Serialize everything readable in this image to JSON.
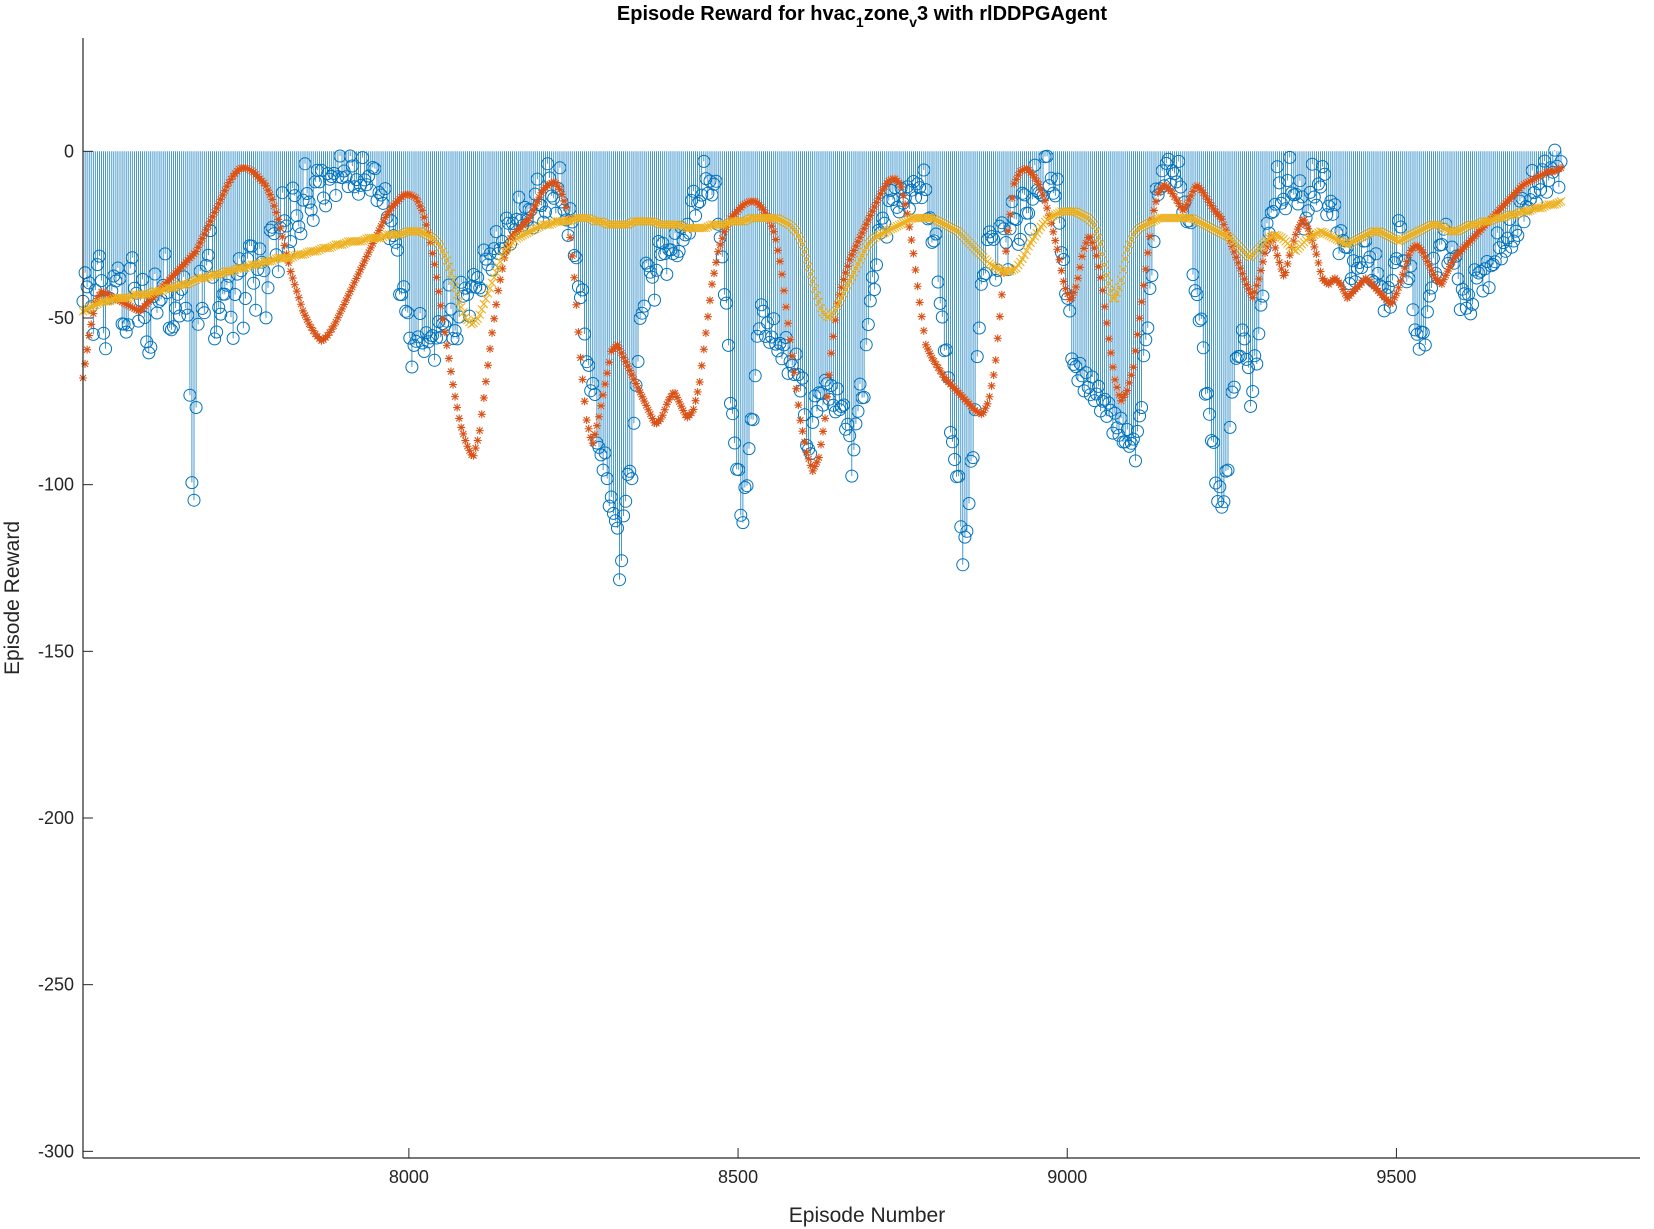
{
  "chart_data": {
    "type": "line",
    "title": {
      "segments": [
        {
          "text": "Episode Reward for hvac",
          "sub": false
        },
        {
          "text": "1",
          "sub": true
        },
        {
          "text": "zone",
          "sub": false
        },
        {
          "text": "v",
          "sub": true
        },
        {
          "text": "3 with rlDDPGAgent",
          "sub": false
        }
      ]
    },
    "xlabel": "Episode Number",
    "ylabel": "Episode Reward",
    "xlim": [
      7505,
      9870
    ],
    "ylim": [
      -302,
      34
    ],
    "xticks": [
      "8000",
      "8500",
      "9000",
      "9500"
    ],
    "xtick_values": [
      8000,
      8500,
      9000,
      9500
    ],
    "yticks": [
      "-300",
      "-250",
      "-200",
      "-150",
      "-100",
      "-50",
      "0"
    ],
    "ytick_values": [
      -300,
      -250,
      -200,
      -150,
      -100,
      -50,
      0
    ],
    "grid": false,
    "colors": {
      "episode": "#0072BD",
      "average": "#D95319",
      "q0": "#EDB120",
      "axes": "#262626"
    },
    "series": [
      {
        "marker": "circle-stem",
        "x_start": 7505,
        "x_end": 9750,
        "values": [
          -45,
          -38,
          -52,
          -28,
          -60,
          -40,
          -35,
          -47,
          -55,
          -30,
          -50,
          -42,
          -65,
          -38,
          -48,
          -33,
          -58,
          -45,
          -40,
          -52,
          -113,
          -35,
          -48,
          -22,
          -60,
          -44,
          -38,
          -55,
          -30,
          -50,
          -25,
          -45,
          -28,
          -48,
          -20,
          -35,
          -15,
          -30,
          -12,
          -25,
          -8,
          -18,
          -12,
          -6,
          -15,
          -5,
          -10,
          -4,
          -8,
          -6,
          -12,
          -5,
          -10,
          -8,
          -15,
          -18,
          -25,
          -35,
          -45,
          -55,
          -62,
          -50,
          -60,
          -55,
          -58,
          -52,
          -45,
          -55,
          -50,
          -38,
          -48,
          -35,
          -42,
          -28,
          -35,
          -25,
          -30,
          -20,
          -25,
          -15,
          -22,
          -18,
          -12,
          -20,
          -8,
          -15,
          -10,
          -18,
          -22,
          -30,
          -45,
          -60,
          -72,
          -85,
          -95,
          -100,
          -110,
          -125,
          -105,
          -95,
          -70,
          -45,
          -35,
          -40,
          -32,
          -28,
          -35,
          -25,
          -30,
          -22,
          -18,
          -15,
          -10,
          -8,
          -12,
          -20,
          -45,
          -70,
          -95,
          -108,
          -100,
          -75,
          -55,
          -45,
          -60,
          -50,
          -65,
          -55,
          -70,
          -60,
          -75,
          -90,
          -82,
          -70,
          -75,
          -68,
          -80,
          -72,
          -85,
          -92,
          -78,
          -70,
          -50,
          -35,
          -25,
          -20,
          -15,
          -12,
          -18,
          -10,
          -15,
          -8,
          -12,
          -20,
          -30,
          -45,
          -65,
          -85,
          -100,
          -120,
          -110,
          -80,
          -50,
          -30,
          -25,
          -35,
          -22,
          -30,
          -18,
          -25,
          -15,
          -20,
          -10,
          -12,
          -5,
          -8,
          -15,
          -30,
          -50,
          -62,
          -70,
          -65,
          -75,
          -68,
          -80,
          -72,
          -85,
          -78,
          -90,
          -82,
          -95,
          -75,
          -60,
          -35,
          -15,
          -5,
          -8,
          -4,
          -10,
          -15,
          -25,
          -40,
          -55,
          -70,
          -90,
          -100,
          -110,
          -85,
          -70,
          -55,
          -60,
          -72,
          -65,
          -40,
          -25,
          -15,
          -10,
          -15,
          -8,
          -12,
          -15,
          -20,
          -10,
          -12,
          -8,
          -15,
          -20,
          -25,
          -30,
          -35,
          -40,
          -28,
          -32,
          -35,
          -38,
          -42,
          -48,
          -30,
          -25,
          -35,
          -42,
          -55,
          -60,
          -45,
          -38,
          -30,
          -25,
          -30,
          -35,
          -42,
          -48,
          -42,
          -38,
          -35,
          -40,
          -28,
          -32,
          -25,
          -28,
          -22,
          -18,
          -15,
          -12,
          -10,
          -8,
          -6,
          -5,
          -4
        ]
      },
      {
        "marker": "asterisk",
        "x_start": 7505,
        "x_end": 9750,
        "values": [
          -68,
          -55,
          -45,
          -42,
          -43,
          -44,
          -45,
          -46,
          -47,
          -48,
          -46,
          -44,
          -42,
          -40,
          -38,
          -36,
          -34,
          -32,
          -30,
          -26,
          -22,
          -18,
          -14,
          -10,
          -7,
          -5,
          -5,
          -6,
          -8,
          -10,
          -14,
          -20,
          -28,
          -36,
          -42,
          -48,
          -52,
          -55,
          -57,
          -55,
          -52,
          -48,
          -44,
          -40,
          -36,
          -32,
          -28,
          -24,
          -20,
          -17,
          -15,
          -13,
          -13,
          -14,
          -18,
          -25,
          -35,
          -48,
          -60,
          -72,
          -82,
          -88,
          -92,
          -85,
          -70,
          -55,
          -42,
          -32,
          -26,
          -24,
          -22,
          -20,
          -16,
          -12,
          -10,
          -9,
          -12,
          -18,
          -35,
          -60,
          -80,
          -88,
          -80,
          -70,
          -60,
          -58,
          -62,
          -66,
          -70,
          -74,
          -78,
          -82,
          -80,
          -75,
          -72,
          -76,
          -80,
          -78,
          -70,
          -55,
          -40,
          -30,
          -24,
          -20,
          -18,
          -16,
          -15,
          -15,
          -17,
          -20,
          -25,
          -35,
          -50,
          -65,
          -80,
          -90,
          -96,
          -92,
          -80,
          -60,
          -45,
          -38,
          -32,
          -28,
          -24,
          -20,
          -16,
          -12,
          -9,
          -8,
          -10,
          -18,
          -30,
          -45,
          -58,
          -62,
          -65,
          -68,
          -70,
          -72,
          -74,
          -76,
          -78,
          -79,
          -75,
          -65,
          -45,
          -25,
          -10,
          -6,
          -5,
          -7,
          -10,
          -15,
          -22,
          -30,
          -40,
          -45,
          -40,
          -30,
          -25,
          -30,
          -40,
          -55,
          -68,
          -75,
          -72,
          -65,
          -50,
          -35,
          -20,
          -12,
          -10,
          -12,
          -15,
          -18,
          -14,
          -10,
          -12,
          -15,
          -18,
          -20,
          -25,
          -30,
          -35,
          -40,
          -44,
          -38,
          -30,
          -25,
          -32,
          -38,
          -30,
          -24,
          -20,
          -24,
          -30,
          -38,
          -40,
          -38,
          -40,
          -44,
          -42,
          -40,
          -38,
          -40,
          -42,
          -44,
          -46,
          -42,
          -36,
          -30,
          -28,
          -30,
          -34,
          -38,
          -40,
          -36,
          -32,
          -30,
          -28,
          -26,
          -24,
          -22,
          -20,
          -18,
          -16,
          -14,
          -12,
          -10,
          -9,
          -8,
          -7,
          -6,
          -6,
          -5
        ]
      },
      {
        "marker": "x",
        "x_start": 7505,
        "x_end": 9750,
        "values": [
          -48,
          -47,
          -46,
          -45,
          -45,
          -44,
          -44,
          -44,
          -43,
          -43,
          -43,
          -42,
          -42,
          -41,
          -41,
          -40,
          -40,
          -39,
          -38,
          -38,
          -37,
          -37,
          -36,
          -36,
          -35,
          -35,
          -34,
          -34,
          -33,
          -33,
          -32,
          -32,
          -32,
          -31,
          -31,
          -30,
          -30,
          -29,
          -29,
          -28,
          -28,
          -27,
          -27,
          -27,
          -26,
          -26,
          -26,
          -25,
          -25,
          -25,
          -24,
          -24,
          -24,
          -25,
          -26,
          -28,
          -32,
          -38,
          -45,
          -50,
          -52,
          -50,
          -45,
          -40,
          -35,
          -30,
          -28,
          -26,
          -25,
          -24,
          -23,
          -22,
          -22,
          -21,
          -21,
          -21,
          -20,
          -20,
          -20,
          -21,
          -21,
          -22,
          -22,
          -22,
          -22,
          -21,
          -21,
          -21,
          -21,
          -22,
          -22,
          -22,
          -22,
          -23,
          -23,
          -23,
          -23,
          -22,
          -22,
          -22,
          -21,
          -21,
          -21,
          -20,
          -20,
          -20,
          -20,
          -20,
          -21,
          -22,
          -24,
          -28,
          -35,
          -42,
          -48,
          -50,
          -48,
          -44,
          -40,
          -36,
          -32,
          -28,
          -26,
          -25,
          -24,
          -23,
          -22,
          -21,
          -20,
          -20,
          -20,
          -20,
          -21,
          -22,
          -23,
          -24,
          -26,
          -28,
          -30,
          -32,
          -34,
          -35,
          -36,
          -36,
          -35,
          -32,
          -28,
          -25,
          -22,
          -20,
          -19,
          -18,
          -18,
          -18,
          -19,
          -20,
          -22,
          -28,
          -38,
          -45,
          -40,
          -30,
          -25,
          -23,
          -22,
          -21,
          -20,
          -20,
          -20,
          -20,
          -20,
          -20,
          -21,
          -22,
          -23,
          -24,
          -25,
          -26,
          -28,
          -30,
          -32,
          -30,
          -28,
          -26,
          -25,
          -26,
          -28,
          -30,
          -28,
          -26,
          -25,
          -24,
          -25,
          -26,
          -27,
          -28,
          -27,
          -26,
          -25,
          -24,
          -24,
          -25,
          -26,
          -27,
          -26,
          -25,
          -24,
          -23,
          -22,
          -22,
          -23,
          -24,
          -24,
          -23,
          -22,
          -22,
          -21,
          -21,
          -20,
          -20,
          -19,
          -19,
          -18,
          -18,
          -17,
          -17,
          -16,
          -16,
          -15
        ]
      }
    ]
  }
}
